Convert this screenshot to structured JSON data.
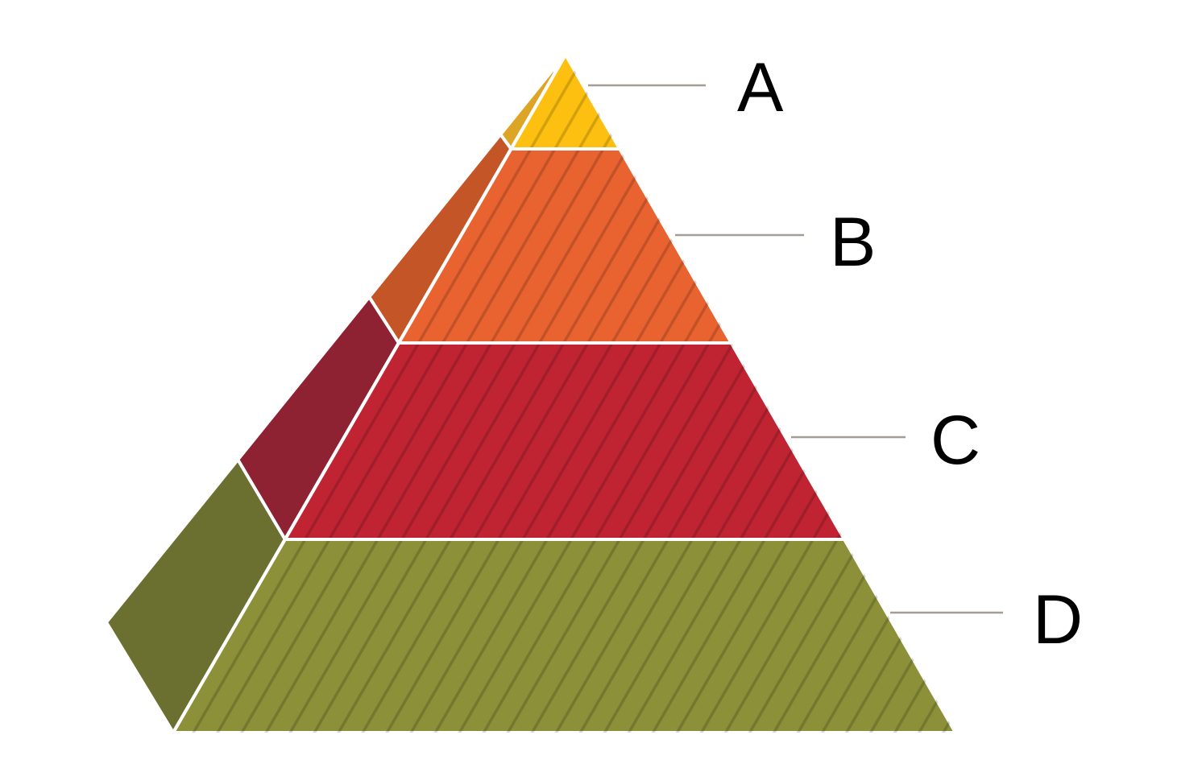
{
  "diagram": {
    "type": "pyramid",
    "levels": [
      {
        "label": "A",
        "front_color": "#FDC010",
        "side_color": "#DDA526"
      },
      {
        "label": "B",
        "front_color": "#E86330",
        "side_color": "#C45527"
      },
      {
        "label": "C",
        "front_color": "#C02433",
        "side_color": "#8E2232"
      },
      {
        "label": "D",
        "front_color": "#8C9038",
        "side_color": "#6B7031"
      }
    ],
    "hatch_color": "rgba(0,0,0,0.17)",
    "leader_color": "#a39d94"
  }
}
